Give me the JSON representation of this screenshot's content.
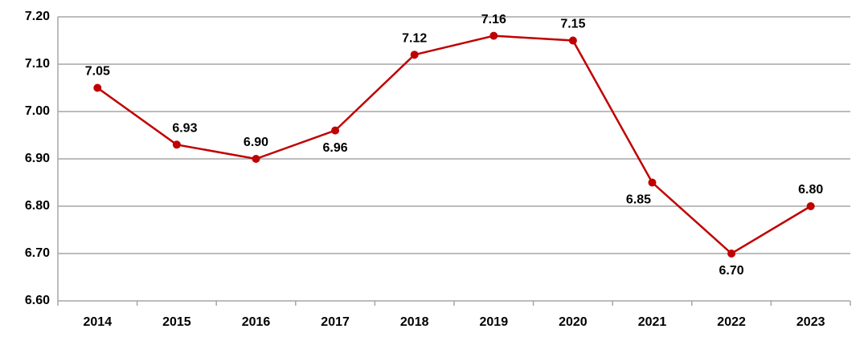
{
  "chart_data": {
    "type": "line",
    "categories": [
      "2014",
      "2015",
      "2016",
      "2017",
      "2018",
      "2019",
      "2020",
      "2021",
      "2022",
      "2023"
    ],
    "series": [
      {
        "color": "#c00000",
        "values": [
          7.05,
          6.93,
          6.9,
          6.96,
          7.12,
          7.16,
          7.15,
          6.85,
          6.7,
          6.8
        ],
        "value_labels": [
          "7.05",
          "6.93",
          "6.90",
          "6.96",
          "7.12",
          "7.16",
          "7.15",
          "6.85",
          "6.70",
          "6.80"
        ]
      }
    ],
    "ylim": [
      6.6,
      7.2
    ],
    "yticks": [
      {
        "value": 6.6,
        "label": "6.60"
      },
      {
        "value": 6.7,
        "label": "6.70"
      },
      {
        "value": 6.8,
        "label": "6.80"
      },
      {
        "value": 6.9,
        "label": "6.90"
      },
      {
        "value": 7.0,
        "label": "7.00"
      },
      {
        "value": 7.1,
        "label": "7.10"
      },
      {
        "value": 7.2,
        "label": "7.20"
      }
    ],
    "grid": true
  }
}
